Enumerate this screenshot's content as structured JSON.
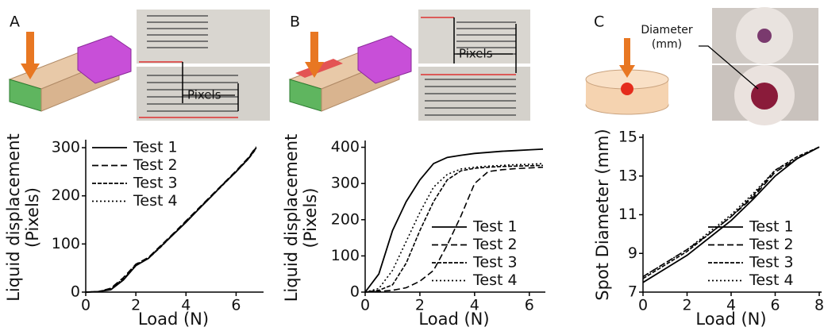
{
  "chart_data": [
    {
      "type": "line",
      "panel": "A",
      "annotations": [
        "Pixels"
      ],
      "xlabel": "Load (N)",
      "ylabel": [
        "Liquid displacement",
        "(Pixels)"
      ],
      "xlim": [
        0,
        7
      ],
      "ylim": [
        0,
        310
      ],
      "xticks": [
        0,
        2,
        4,
        6
      ],
      "yticks": [
        0,
        100,
        200,
        300
      ],
      "legend": "upper left",
      "x": [
        0,
        0.5,
        1,
        1.5,
        2,
        2.5,
        3,
        3.5,
        4,
        4.5,
        5,
        5.5,
        6,
        6.5,
        6.8
      ],
      "series": [
        {
          "name": "Test 1",
          "color": "#000000",
          "linestyle": "solid",
          "values": [
            0,
            1,
            5,
            25,
            55,
            70,
            95,
            120,
            145,
            172,
            198,
            225,
            250,
            278,
            300
          ]
        },
        {
          "name": "Test 2",
          "color": "#000000",
          "linestyle": "dashed",
          "values": [
            0,
            1,
            8,
            30,
            58,
            72,
            97,
            122,
            148,
            174,
            200,
            226,
            252,
            280,
            302
          ]
        },
        {
          "name": "Test 3",
          "color": "#000000",
          "linestyle": "dashdot",
          "values": [
            0,
            1,
            6,
            27,
            55,
            70,
            94,
            120,
            146,
            172,
            198,
            224,
            250,
            277,
            298
          ]
        },
        {
          "name": "Test 4",
          "color": "#000000",
          "linestyle": "dotted",
          "values": [
            0,
            1,
            7,
            28,
            57,
            71,
            96,
            121,
            147,
            173,
            199,
            225,
            251,
            279,
            300
          ]
        }
      ]
    },
    {
      "type": "line",
      "panel": "B",
      "annotations": [
        "Pixels"
      ],
      "xlabel": "Load (N)",
      "ylabel": [
        "Liquid displacement",
        "(Pixels)"
      ],
      "xlim": [
        0,
        6.5
      ],
      "ylim": [
        0,
        410
      ],
      "xticks": [
        0,
        2,
        4,
        6
      ],
      "yticks": [
        0,
        100,
        200,
        300,
        400
      ],
      "legend": "lower right",
      "x": [
        0,
        0.5,
        1,
        1.5,
        2,
        2.5,
        3,
        3.5,
        4,
        4.5,
        5,
        5.5,
        6,
        6.5
      ],
      "series": [
        {
          "name": "Test 1",
          "color": "#000000",
          "linestyle": "solid",
          "values": [
            0,
            50,
            170,
            250,
            310,
            355,
            372,
            378,
            383,
            386,
            389,
            391,
            393,
            395
          ]
        },
        {
          "name": "Test 2",
          "color": "#000000",
          "linestyle": "dashed",
          "values": [
            0,
            2,
            5,
            12,
            30,
            60,
            130,
            210,
            300,
            333,
            338,
            341,
            343,
            345
          ]
        },
        {
          "name": "Test 3",
          "color": "#000000",
          "linestyle": "dashdot",
          "values": [
            0,
            5,
            20,
            80,
            170,
            250,
            310,
            335,
            342,
            345,
            347,
            348,
            349,
            350
          ]
        },
        {
          "name": "Test 4",
          "color": "#000000",
          "linestyle": "dotted",
          "values": [
            0,
            10,
            60,
            140,
            220,
            290,
            325,
            340,
            345,
            348,
            350,
            352,
            353,
            355
          ]
        }
      ]
    },
    {
      "type": "line",
      "panel": "C",
      "annotations": [
        "Diameter",
        "(mm)"
      ],
      "xlabel": "Load (N)",
      "ylabel": [
        "Spot Diameter (mm)"
      ],
      "xlim": [
        0,
        8
      ],
      "ylim": [
        7,
        15
      ],
      "xticks": [
        0,
        2,
        4,
        6,
        8
      ],
      "yticks": [
        7,
        9,
        11,
        13,
        15
      ],
      "legend": "lower right",
      "x": [
        0,
        1,
        2,
        3,
        4,
        5,
        6,
        7,
        8
      ],
      "series": [
        {
          "name": "Test 1",
          "color": "#000000",
          "linestyle": "solid",
          "values": [
            7.5,
            8.2,
            8.9,
            9.8,
            10.7,
            11.8,
            13.0,
            13.9,
            14.5
          ]
        },
        {
          "name": "Test 2",
          "color": "#000000",
          "linestyle": "dashed",
          "values": [
            7.8,
            8.5,
            9.2,
            10.0,
            10.9,
            11.9,
            13.2,
            13.9,
            14.5
          ]
        },
        {
          "name": "Test 3",
          "color": "#000000",
          "linestyle": "dashdot",
          "values": [
            7.7,
            8.4,
            9.1,
            10.0,
            10.9,
            12.0,
            13.3,
            14.0,
            14.5
          ]
        },
        {
          "name": "Test 4",
          "color": "#000000",
          "linestyle": "dotted",
          "values": [
            7.8,
            8.5,
            9.2,
            10.1,
            11.0,
            12.1,
            13.3,
            13.9,
            14.5
          ]
        }
      ]
    }
  ]
}
